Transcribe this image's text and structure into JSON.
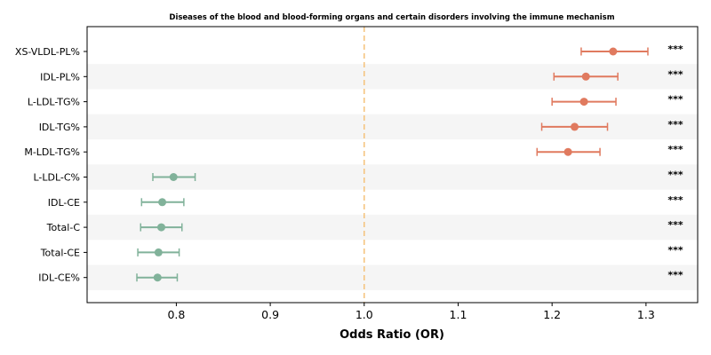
{
  "chart_data": {
    "type": "scatter",
    "subtype": "forest-plot",
    "title": "Diseases of the blood and blood-forming organs and certain disorders involving the immune mechanism",
    "xlabel": "Odds Ratio (OR)",
    "ylabel": "",
    "xlim": [
      0.705,
      1.355
    ],
    "xticks": [
      "0.8",
      "0.9",
      "1.0",
      "1.1",
      "1.2",
      "1.3"
    ],
    "reference_line": 1.0,
    "reference_line_color": "#f5c27a",
    "colors": {
      "positive": "#e07a5f",
      "negative": "#81b29a",
      "band": "#f5f5f5"
    },
    "grid": false,
    "rows": [
      {
        "label": "XS-VLDL-PL%",
        "or": 1.265,
        "lo": 1.231,
        "hi": 1.302,
        "sig": "***"
      },
      {
        "label": "IDL-PL%",
        "or": 1.236,
        "lo": 1.202,
        "hi": 1.27,
        "sig": "***"
      },
      {
        "label": "L-LDL-TG%",
        "or": 1.234,
        "lo": 1.2,
        "hi": 1.268,
        "sig": "***"
      },
      {
        "label": "IDL-TG%",
        "or": 1.224,
        "lo": 1.189,
        "hi": 1.259,
        "sig": "***"
      },
      {
        "label": "M-LDL-TG%",
        "or": 1.217,
        "lo": 1.184,
        "hi": 1.251,
        "sig": "***"
      },
      {
        "label": "L-LDL-C%",
        "or": 0.797,
        "lo": 0.775,
        "hi": 0.82,
        "sig": "***"
      },
      {
        "label": "IDL-CE",
        "or": 0.785,
        "lo": 0.763,
        "hi": 0.808,
        "sig": "***"
      },
      {
        "label": "Total-C",
        "or": 0.784,
        "lo": 0.762,
        "hi": 0.806,
        "sig": "***"
      },
      {
        "label": "Total-CE",
        "or": 0.781,
        "lo": 0.759,
        "hi": 0.803,
        "sig": "***"
      },
      {
        "label": "IDL-CE%",
        "or": 0.78,
        "lo": 0.758,
        "hi": 0.801,
        "sig": "***"
      }
    ]
  }
}
